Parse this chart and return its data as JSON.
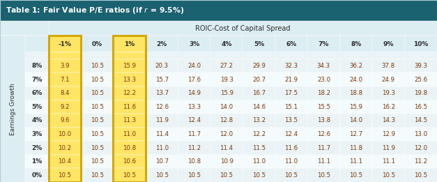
{
  "title_prefix": "Table 1: Fair Value P/E ratios (if ",
  "title_r": "r",
  "title_suffix": " = 9.5%)",
  "col_header_label": "ROIC-Cost of Capital Spread",
  "row_header_label": "Earnings Growth",
  "col_headers": [
    "-1%",
    "0%",
    "1%",
    "2%",
    "3%",
    "4%",
    "5%",
    "6%",
    "7%",
    "8%",
    "9%",
    "10%"
  ],
  "row_headers": [
    "8%",
    "7%",
    "6%",
    "5%",
    "4%",
    "3%",
    "2%",
    "1%",
    "0%"
  ],
  "data": [
    [
      3.9,
      10.5,
      15.9,
      20.3,
      24.0,
      27.2,
      29.9,
      32.3,
      34.3,
      36.2,
      37.8,
      39.3
    ],
    [
      7.1,
      10.5,
      13.3,
      15.7,
      17.6,
      19.3,
      20.7,
      21.9,
      23.0,
      24.0,
      24.9,
      25.6
    ],
    [
      8.4,
      10.5,
      12.2,
      13.7,
      14.9,
      15.9,
      16.7,
      17.5,
      18.2,
      18.8,
      19.3,
      19.8
    ],
    [
      9.2,
      10.5,
      11.6,
      12.6,
      13.3,
      14.0,
      14.6,
      15.1,
      15.5,
      15.9,
      16.2,
      16.5
    ],
    [
      9.6,
      10.5,
      11.3,
      11.9,
      12.4,
      12.8,
      13.2,
      13.5,
      13.8,
      14.0,
      14.3,
      14.5
    ],
    [
      10.0,
      10.5,
      11.0,
      11.4,
      11.7,
      12.0,
      12.2,
      12.4,
      12.6,
      12.7,
      12.9,
      13.0
    ],
    [
      10.2,
      10.5,
      10.8,
      11.0,
      11.2,
      11.4,
      11.5,
      11.6,
      11.7,
      11.8,
      11.9,
      12.0
    ],
    [
      10.4,
      10.5,
      10.6,
      10.7,
      10.8,
      10.9,
      11.0,
      11.0,
      11.1,
      11.1,
      11.1,
      11.2
    ],
    [
      10.5,
      10.5,
      10.5,
      10.5,
      10.5,
      10.5,
      10.5,
      10.5,
      10.5,
      10.5,
      10.5,
      10.5
    ]
  ],
  "title_bg": "#1b6270",
  "title_fg": "#ffffff",
  "header_bg": "#ddeef3",
  "header_fg": "#2c2c2c",
  "cell_bg_even": "#eaf4f7",
  "cell_bg_odd": "#f4fbfd",
  "cell_fg": "#7b3300",
  "highlight_cols": [
    0,
    2
  ],
  "highlight_bg": "#ffe566",
  "highlight_outline": "#d4a800",
  "spacer_bg": "#eaf4f7",
  "outer_border": "#b0cdd4"
}
